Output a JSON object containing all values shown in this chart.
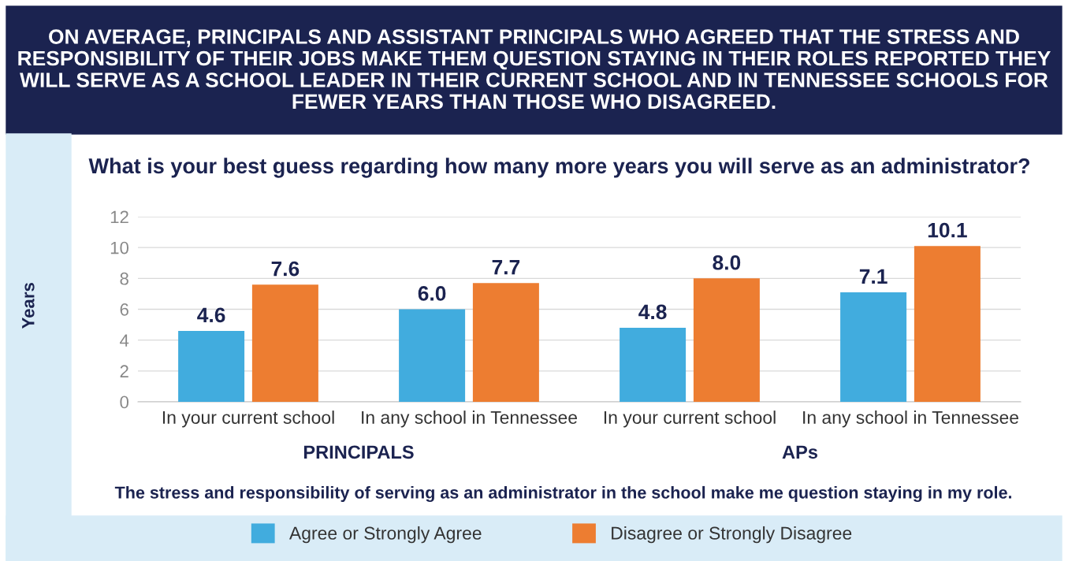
{
  "chart_data": {
    "type": "bar",
    "title": "ON AVERAGE, PRINCIPALS AND ASSISTANT PRINCIPALS WHO AGREED THAT THE STRESS AND RESPONSIBILITY OF THEIR JOBS MAKE THEM QUESTION STAYING IN THEIR ROLES REPORTED THEY WILL SERVE AS A SCHOOL LEADER IN THEIR CURRENT SCHOOL AND IN TENNESSEE SCHOOLS FOR FEWER YEARS THAN THOSE WHO DISAGREED.",
    "subtitle": "What is your best guess regarding how many more years you will serve as an administrator?",
    "ylabel": "Years",
    "categories": [
      "In your current school",
      "In any school in Tennessee",
      "In your current school",
      "In any school in Tennessee"
    ],
    "series": [
      {
        "name": "Agree or Strongly Agree",
        "color": "#41acde",
        "values": [
          4.6,
          6.0,
          4.8,
          7.1
        ]
      },
      {
        "name": "Disagree or Strongly Disagree",
        "color": "#ed7d31",
        "values": [
          7.6,
          7.7,
          8.0,
          10.1
        ]
      }
    ],
    "value_labels": [
      [
        "4.6",
        "6.0",
        "4.8",
        "7.1"
      ],
      [
        "7.6",
        "7.7",
        "8.0",
        "10.1"
      ]
    ],
    "ylim": [
      0,
      12
    ],
    "yticks": [
      0,
      2,
      4,
      6,
      8,
      10,
      12
    ],
    "grid": "y",
    "legend": "bottom",
    "annotations": [
      "PRINCIPALS",
      "APs",
      "The stress and responsibility of serving as an administrator in the school make me question staying in my role."
    ]
  }
}
